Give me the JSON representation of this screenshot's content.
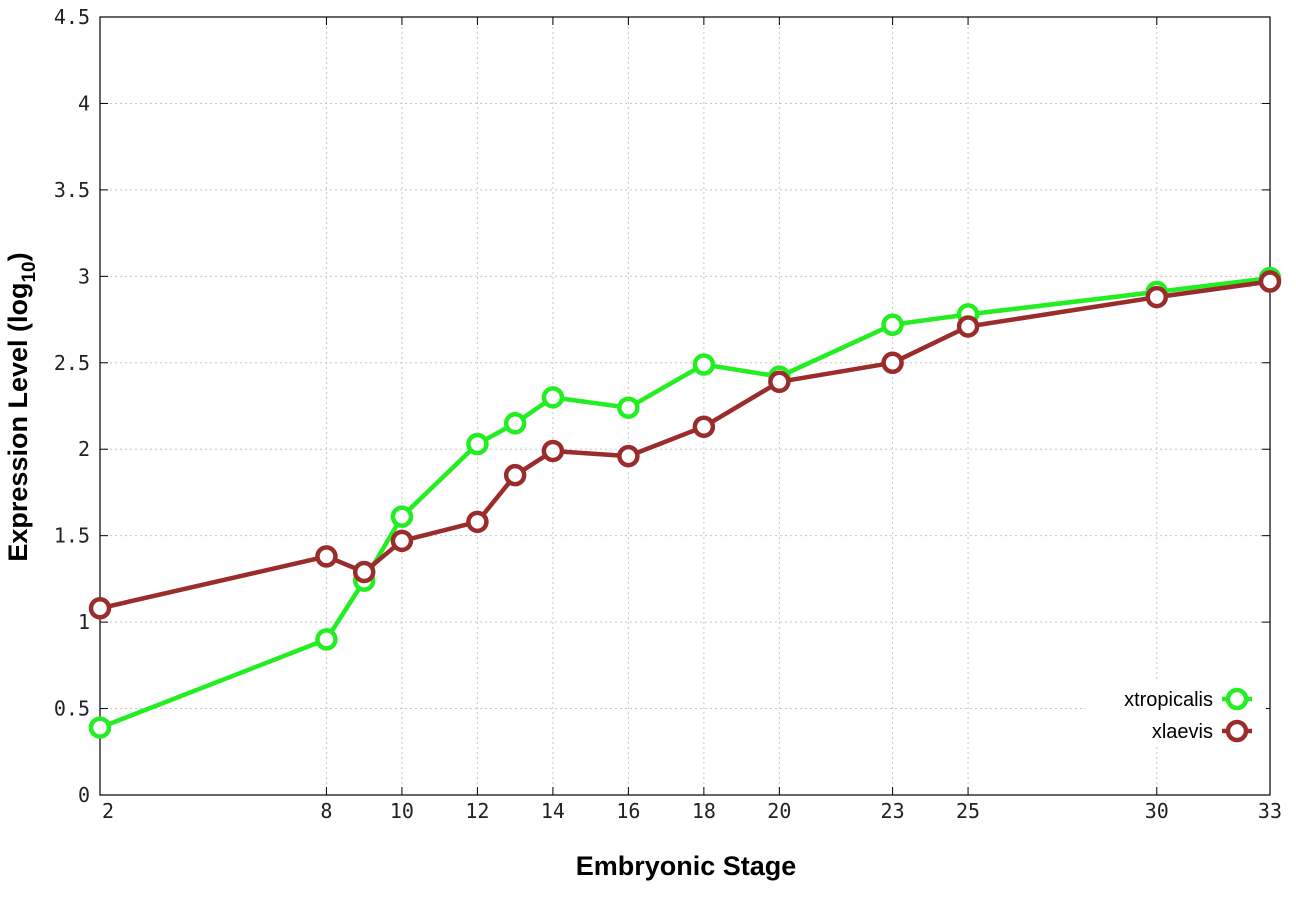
{
  "chart_data": {
    "type": "line",
    "xlabel": "Embryonic Stage",
    "ylabel_main": "Expression Level (log",
    "ylabel_sub": "10",
    "ylabel_close": ")",
    "xlim": [
      2,
      33
    ],
    "ylim": [
      0,
      4.5
    ],
    "x_ticks": [
      2,
      8,
      10,
      12,
      14,
      16,
      18,
      20,
      23,
      25,
      30,
      33
    ],
    "y_ticks": [
      "0",
      "0.5",
      "1",
      "1.5",
      "2",
      "2.5",
      "3",
      "3.5",
      "4",
      "4.5"
    ],
    "grid": true,
    "legend_position": "bottom-right",
    "series": [
      {
        "name": "xtropicalis",
        "color": "#22ee22",
        "marker": "circle",
        "points": [
          [
            2,
            0.39
          ],
          [
            8,
            0.9
          ],
          [
            9,
            1.24
          ],
          [
            10,
            1.61
          ],
          [
            12,
            2.03
          ],
          [
            13,
            2.15
          ],
          [
            14,
            2.3
          ],
          [
            16,
            2.24
          ],
          [
            18,
            2.49
          ],
          [
            20,
            2.42
          ],
          [
            23,
            2.72
          ],
          [
            25,
            2.78
          ],
          [
            30,
            2.91
          ],
          [
            33,
            2.99
          ]
        ]
      },
      {
        "name": "xlaevis",
        "color": "#9b2c2c",
        "marker": "circle",
        "points": [
          [
            2,
            1.08
          ],
          [
            8,
            1.38
          ],
          [
            9,
            1.29
          ],
          [
            10,
            1.47
          ],
          [
            12,
            1.58
          ],
          [
            13,
            1.85
          ],
          [
            14,
            1.99
          ],
          [
            16,
            1.96
          ],
          [
            18,
            2.13
          ],
          [
            20,
            2.39
          ],
          [
            23,
            2.5
          ],
          [
            25,
            2.71
          ],
          [
            30,
            2.88
          ],
          [
            33,
            2.97
          ]
        ]
      }
    ]
  }
}
